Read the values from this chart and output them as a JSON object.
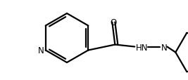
{
  "bg_color": "#ffffff",
  "line_color": "#000000",
  "N_label": "N",
  "HN_label": "HN",
  "N2_label": "N",
  "O_label": "O",
  "line_width": 1.6,
  "figsize": [
    2.67,
    1.15
  ],
  "dpi": 100
}
